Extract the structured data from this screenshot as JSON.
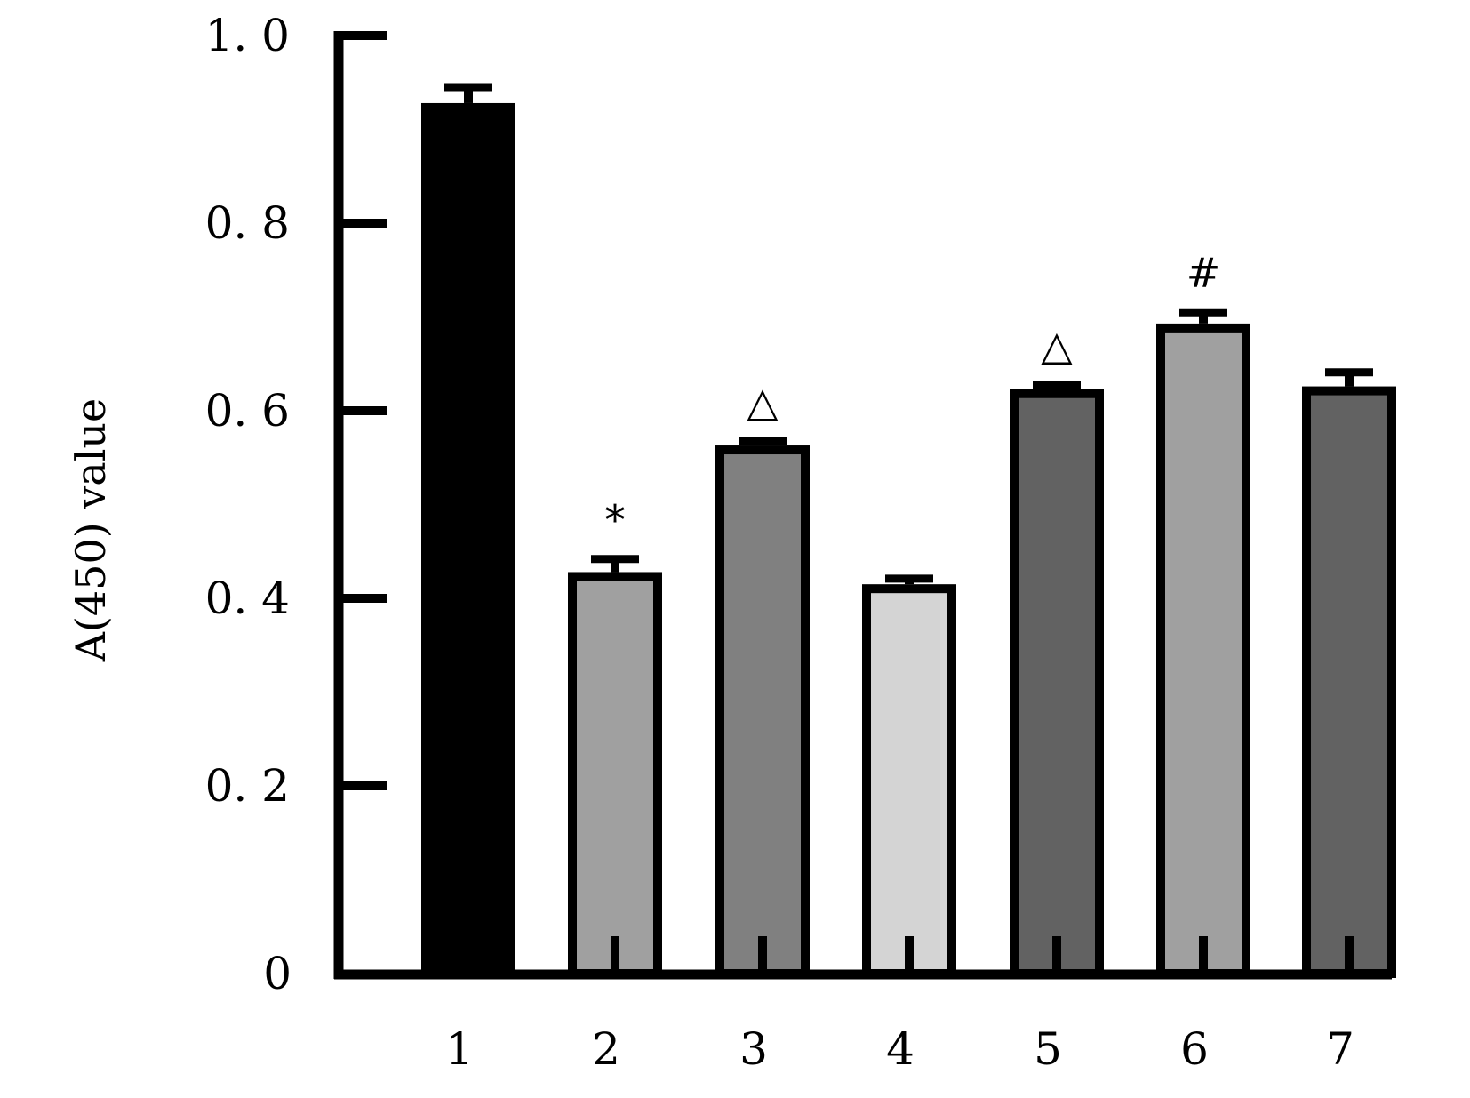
{
  "chart_data": {
    "type": "bar",
    "title": "",
    "xlabel": "",
    "ylabel": "A(450) value",
    "ylim": [
      0,
      1.0
    ],
    "yticks": [
      0,
      0.2,
      0.4,
      0.6,
      0.8,
      1.0
    ],
    "ytick_labels": [
      "0",
      "0. 2",
      "0. 4",
      "0. 6",
      "0. 8",
      "1. 0"
    ],
    "categories": [
      "1",
      "2",
      "3",
      "4",
      "5",
      "6",
      "7"
    ],
    "values": [
      0.928,
      0.428,
      0.563,
      0.415,
      0.623,
      0.693,
      0.626
    ],
    "error_upper": [
      0.945,
      0.442,
      0.568,
      0.421,
      0.628,
      0.705,
      0.641
    ],
    "annotations": [
      "",
      "*",
      "△",
      "",
      "△",
      "#",
      ""
    ],
    "colors": [
      "#000000",
      "#a0a0a0",
      "#808080",
      "#d4d4d4",
      "#626262",
      "#a0a0a0",
      "#626262"
    ],
    "grid": false,
    "legend": "none"
  }
}
